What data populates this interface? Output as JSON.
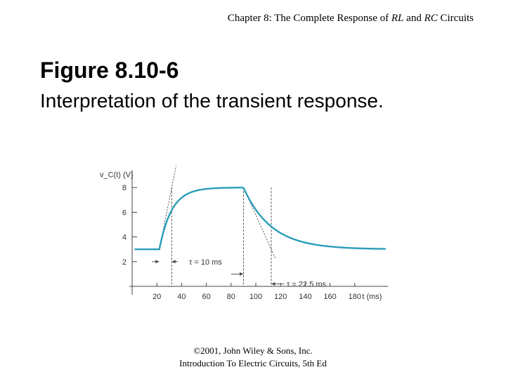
{
  "header": {
    "chapter_prefix": "Chapter 8: The Complete Response of ",
    "chapter_rl": "RL",
    "chapter_and": " and ",
    "chapter_rc": "RC",
    "chapter_suffix": " Circuits"
  },
  "figure": {
    "title": "Figure 8.10-6",
    "subtitle": "Interpretation of the transient response."
  },
  "footer": {
    "line1": "©2001, John Wiley & Sons, Inc.",
    "line2": "Introduction To Electric Circuits, 5th Ed"
  },
  "chart_data": {
    "type": "line",
    "y_label": "v_C(t) (V)",
    "x_label": "t (ms)",
    "x_ticks": [
      20,
      40,
      60,
      80,
      100,
      120,
      140,
      160,
      180
    ],
    "y_ticks": [
      2,
      4,
      6,
      8
    ],
    "xlim": [
      0,
      200
    ],
    "ylim": [
      0,
      9.4
    ],
    "series": [
      {
        "color": "#2a9db8",
        "segments": [
          {
            "kind": "constant",
            "from": 2,
            "to": 22,
            "value": 3
          },
          {
            "kind": "exp",
            "from": 22,
            "to": 90,
            "initial": 3,
            "final": 8,
            "tau": 10
          },
          {
            "kind": "exp",
            "from": 90,
            "to": 205,
            "initial": 8,
            "final": 3,
            "tau": 22.5
          }
        ]
      }
    ],
    "tangents": [
      {
        "start": [
          22,
          3
        ],
        "end": [
          32,
          8
        ]
      },
      {
        "start": [
          90,
          8
        ],
        "end": [
          112.5,
          3
        ]
      }
    ],
    "annotations": {
      "tau1": "τ = 10 ms",
      "tau2": "τ = 22.5 ms"
    }
  }
}
